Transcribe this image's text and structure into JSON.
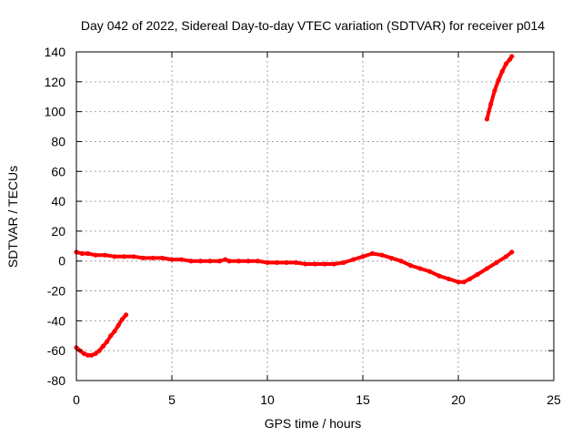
{
  "chart_data": {
    "type": "line",
    "title": "Day 042 of 2022, Sidereal Day-to-day VTEC variation (SDTVAR) for receiver p014",
    "xlabel": "GPS time / hours",
    "ylabel": "SDTVAR / TECUs",
    "xlim": [
      0,
      25
    ],
    "ylim": [
      -80,
      140
    ],
    "xticks": [
      0,
      5,
      10,
      15,
      20,
      25
    ],
    "yticks": [
      -80,
      -60,
      -40,
      -20,
      0,
      20,
      40,
      60,
      80,
      100,
      120,
      140
    ],
    "grid": true,
    "legend": "none",
    "color": "#ff0000",
    "series": [
      {
        "name": "main",
        "x": [
          0.0,
          0.3,
          0.6,
          1.0,
          1.5,
          2.0,
          2.5,
          3.0,
          3.5,
          4.0,
          4.5,
          5.0,
          5.5,
          6.0,
          6.5,
          7.0,
          7.5,
          7.8,
          8.0,
          8.5,
          9.0,
          9.5,
          10.0,
          10.5,
          11.0,
          11.5,
          12.0,
          12.5,
          13.0,
          13.5,
          14.0,
          14.5,
          15.0,
          15.5,
          16.0,
          16.5,
          17.0,
          17.5,
          18.0,
          18.5,
          19.0,
          19.5,
          20.0,
          20.3,
          20.6,
          21.0,
          21.5,
          22.0,
          22.5,
          22.8
        ],
        "y": [
          6,
          5,
          5,
          4,
          4,
          3,
          3,
          3,
          2,
          2,
          2,
          1,
          1,
          0,
          0,
          0,
          0,
          1,
          0,
          0,
          0,
          0,
          -1,
          -1,
          -1,
          -1,
          -2,
          -2,
          -2,
          -2,
          -1,
          1,
          3,
          5,
          4,
          2,
          0,
          -3,
          -5,
          -7,
          -10,
          -12,
          -14,
          -14,
          -12,
          -9,
          -5,
          -1,
          3,
          6
        ]
      },
      {
        "name": "early",
        "x": [
          0.0,
          0.2,
          0.4,
          0.6,
          0.8,
          1.0,
          1.2,
          1.4,
          1.6,
          1.8,
          2.0,
          2.2,
          2.4,
          2.6
        ],
        "y": [
          -58,
          -60,
          -62,
          -63,
          -63,
          -62,
          -60,
          -57,
          -54,
          -50,
          -47,
          -43,
          -39,
          -36
        ]
      },
      {
        "name": "late",
        "x": [
          21.5,
          21.7,
          21.9,
          22.1,
          22.3,
          22.5,
          22.7,
          22.8
        ],
        "y": [
          95,
          105,
          114,
          121,
          127,
          132,
          135,
          137
        ]
      }
    ]
  }
}
